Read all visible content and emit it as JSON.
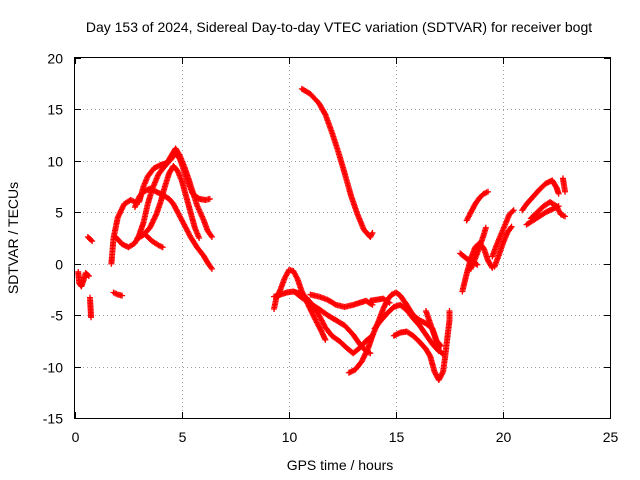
{
  "chart_data": {
    "type": "scatter",
    "title": "Day 153 of 2024, Sidereal Day-to-day VTEC variation (SDTVAR) for receiver bogt",
    "xlabel": "GPS time / hours",
    "ylabel": "SDTVAR / TECUs",
    "xlim": [
      0,
      25
    ],
    "ylim": [
      -15,
      20
    ],
    "xticks": [
      0,
      5,
      10,
      15,
      20,
      25
    ],
    "yticks": [
      -15,
      -10,
      -5,
      0,
      5,
      10,
      15,
      20
    ],
    "grid": true,
    "marker": "+",
    "color": "#ff0000",
    "series": [
      {
        "name": "arc-1",
        "points": [
          [
            0.15,
            -0.8
          ],
          [
            0.2,
            -1.9
          ],
          [
            0.3,
            -2.2
          ],
          [
            0.4,
            -1.6
          ],
          [
            0.5,
            -0.9
          ],
          [
            0.6,
            -1.1
          ],
          [
            0.65,
            -1.2
          ]
        ]
      },
      {
        "name": "arc-2",
        "points": [
          [
            0.6,
            2.6
          ],
          [
            0.7,
            2.4
          ],
          [
            0.8,
            2.2
          ]
        ]
      },
      {
        "name": "arc-3",
        "points": [
          [
            0.7,
            -3.3
          ],
          [
            0.75,
            -5.2
          ]
        ]
      },
      {
        "name": "arc-4",
        "points": [
          [
            1.8,
            -2.8
          ],
          [
            2.0,
            -3.0
          ],
          [
            2.2,
            -3.1
          ]
        ]
      },
      {
        "name": "arc-5",
        "points": [
          [
            1.7,
            0.0
          ],
          [
            1.8,
            2.5
          ],
          [
            2.0,
            4.5
          ],
          [
            2.3,
            5.8
          ],
          [
            2.6,
            6.2
          ],
          [
            2.8,
            6.0
          ]
        ]
      },
      {
        "name": "arc-6",
        "points": [
          [
            1.9,
            2.6
          ],
          [
            2.2,
            1.9
          ],
          [
            2.5,
            1.6
          ],
          [
            2.8,
            2.0
          ],
          [
            3.0,
            2.8
          ],
          [
            3.2,
            4.0
          ],
          [
            3.4,
            5.8
          ],
          [
            3.6,
            7.2
          ],
          [
            3.9,
            8.7
          ],
          [
            4.2,
            9.5
          ],
          [
            4.5,
            10.2
          ],
          [
            4.7,
            10.7
          ],
          [
            4.9,
            10.2
          ],
          [
            5.1,
            9.0
          ],
          [
            5.3,
            7.8
          ],
          [
            5.5,
            6.8
          ],
          [
            5.8,
            6.3
          ],
          [
            6.1,
            6.2
          ],
          [
            6.3,
            6.3
          ]
        ]
      },
      {
        "name": "arc-7",
        "points": [
          [
            2.8,
            5.5
          ],
          [
            3.0,
            6.5
          ],
          [
            3.2,
            7.0
          ],
          [
            3.5,
            7.3
          ],
          [
            3.8,
            7.0
          ],
          [
            4.1,
            6.7
          ],
          [
            4.4,
            6.3
          ],
          [
            4.6,
            5.8
          ],
          [
            4.8,
            5.0
          ],
          [
            5.1,
            3.8
          ],
          [
            5.4,
            2.6
          ],
          [
            5.7,
            1.6
          ],
          [
            6.0,
            0.8
          ],
          [
            6.2,
            0.1
          ],
          [
            6.4,
            -0.5
          ]
        ]
      },
      {
        "name": "arc-8",
        "points": [
          [
            3.0,
            6.0
          ],
          [
            3.2,
            7.5
          ],
          [
            3.4,
            8.5
          ],
          [
            3.7,
            9.3
          ],
          [
            4.0,
            9.6
          ],
          [
            4.3,
            9.8
          ],
          [
            4.5,
            10.5
          ],
          [
            4.7,
            11.2
          ],
          [
            4.9,
            10.5
          ],
          [
            5.1,
            9.5
          ],
          [
            5.3,
            8.3
          ],
          [
            5.5,
            7.0
          ],
          [
            5.7,
            5.7
          ],
          [
            6.0,
            4.3
          ],
          [
            6.2,
            3.2
          ],
          [
            6.4,
            2.6
          ]
        ]
      },
      {
        "name": "arc-9",
        "points": [
          [
            2.9,
            2.4
          ],
          [
            3.2,
            2.8
          ],
          [
            3.5,
            3.5
          ],
          [
            3.8,
            4.8
          ],
          [
            4.0,
            6.0
          ],
          [
            4.2,
            7.5
          ],
          [
            4.4,
            8.8
          ],
          [
            4.6,
            9.5
          ],
          [
            4.8,
            9.0
          ],
          [
            5.0,
            8.0
          ],
          [
            5.2,
            6.5
          ],
          [
            5.4,
            5.0
          ],
          [
            5.6,
            3.5
          ],
          [
            5.8,
            2.5
          ]
        ]
      },
      {
        "name": "arc-10",
        "points": [
          [
            3.3,
            2.8
          ],
          [
            3.6,
            2.2
          ],
          [
            3.9,
            1.8
          ],
          [
            4.1,
            1.6
          ]
        ]
      },
      {
        "name": "arc-11",
        "points": [
          [
            10.6,
            17.0
          ],
          [
            11.0,
            16.5
          ],
          [
            11.4,
            15.6
          ],
          [
            11.7,
            14.5
          ],
          [
            12.0,
            12.8
          ],
          [
            12.3,
            10.9
          ],
          [
            12.6,
            8.8
          ],
          [
            12.9,
            6.6
          ],
          [
            13.2,
            4.8
          ],
          [
            13.5,
            3.3
          ],
          [
            13.8,
            2.6
          ],
          [
            13.9,
            3.0
          ]
        ]
      },
      {
        "name": "arc-12",
        "points": [
          [
            9.3,
            -4.4
          ],
          [
            9.4,
            -3.4
          ],
          [
            9.6,
            -2.5
          ],
          [
            9.8,
            -1.4
          ],
          [
            10.0,
            -0.6
          ],
          [
            10.2,
            -0.7
          ],
          [
            10.4,
            -1.5
          ],
          [
            10.6,
            -2.7
          ],
          [
            10.9,
            -4.0
          ],
          [
            11.2,
            -5.3
          ],
          [
            11.5,
            -6.5
          ],
          [
            11.7,
            -7.4
          ]
        ]
      },
      {
        "name": "arc-13",
        "points": [
          [
            9.3,
            -3.2
          ],
          [
            9.6,
            -3.0
          ],
          [
            9.9,
            -2.8
          ],
          [
            10.2,
            -2.7
          ],
          [
            10.5,
            -2.9
          ],
          [
            10.8,
            -3.3
          ],
          [
            11.1,
            -4.0
          ],
          [
            11.4,
            -5.0
          ],
          [
            11.7,
            -6.2
          ],
          [
            12.0,
            -7.0
          ],
          [
            12.4,
            -7.6
          ],
          [
            12.7,
            -8.2
          ],
          [
            13.0,
            -8.7
          ],
          [
            13.3,
            -8.2
          ],
          [
            13.6,
            -7.5
          ],
          [
            13.9,
            -7.0
          ]
        ]
      },
      {
        "name": "arc-14",
        "points": [
          [
            10.3,
            -2.8
          ],
          [
            10.6,
            -3.3
          ],
          [
            11.0,
            -3.9
          ],
          [
            11.4,
            -4.4
          ],
          [
            11.8,
            -5.0
          ],
          [
            12.2,
            -5.5
          ],
          [
            12.6,
            -6.0
          ],
          [
            13.0,
            -6.9
          ],
          [
            13.3,
            -7.8
          ],
          [
            13.6,
            -8.5
          ],
          [
            13.8,
            -8.7
          ]
        ]
      },
      {
        "name": "arc-15",
        "points": [
          [
            11.0,
            -3.0
          ],
          [
            11.4,
            -3.2
          ],
          [
            11.8,
            -3.5
          ],
          [
            12.2,
            -4.0
          ],
          [
            12.6,
            -4.2
          ],
          [
            13.0,
            -4.0
          ],
          [
            13.3,
            -3.8
          ],
          [
            13.6,
            -3.6
          ],
          [
            13.9,
            -4.0
          ]
        ]
      },
      {
        "name": "arc-16",
        "points": [
          [
            12.8,
            -10.6
          ],
          [
            13.1,
            -10.3
          ],
          [
            13.4,
            -9.5
          ],
          [
            13.7,
            -8.2
          ],
          [
            13.9,
            -7.0
          ],
          [
            14.2,
            -5.5
          ],
          [
            14.4,
            -4.4
          ],
          [
            14.6,
            -3.5
          ],
          [
            14.8,
            -3.0
          ],
          [
            15.0,
            -2.8
          ],
          [
            15.2,
            -3.1
          ],
          [
            15.5,
            -4.0
          ],
          [
            15.8,
            -5.0
          ],
          [
            16.1,
            -5.5
          ],
          [
            16.4,
            -5.8
          ],
          [
            16.7,
            -6.3
          ],
          [
            16.9,
            -7.5
          ],
          [
            17.1,
            -8.0
          ]
        ]
      },
      {
        "name": "arc-17",
        "points": [
          [
            14.0,
            -6.3
          ],
          [
            14.3,
            -5.5
          ],
          [
            14.6,
            -4.8
          ],
          [
            14.9,
            -4.2
          ],
          [
            15.2,
            -4.0
          ],
          [
            15.5,
            -4.5
          ],
          [
            15.8,
            -5.3
          ],
          [
            16.1,
            -6.0
          ],
          [
            16.4,
            -6.9
          ],
          [
            16.7,
            -7.8
          ],
          [
            17.0,
            -8.5
          ]
        ]
      },
      {
        "name": "arc-18",
        "points": [
          [
            13.8,
            -3.6
          ],
          [
            14.1,
            -3.5
          ],
          [
            14.4,
            -3.4
          ],
          [
            14.7,
            -3.8
          ]
        ]
      },
      {
        "name": "arc-19",
        "points": [
          [
            14.9,
            -7.0
          ],
          [
            15.2,
            -6.7
          ],
          [
            15.5,
            -6.6
          ],
          [
            15.8,
            -7.0
          ],
          [
            16.1,
            -7.6
          ],
          [
            16.4,
            -8.3
          ],
          [
            16.6,
            -9.0
          ],
          [
            16.8,
            -10.5
          ],
          [
            17.0,
            -11.3
          ],
          [
            17.2,
            -10.5
          ],
          [
            17.3,
            -9.0
          ],
          [
            17.4,
            -7.2
          ],
          [
            17.5,
            -5.5
          ],
          [
            17.5,
            -4.6
          ]
        ]
      },
      {
        "name": "arc-20",
        "points": [
          [
            16.4,
            -4.6
          ],
          [
            16.6,
            -5.8
          ],
          [
            16.8,
            -7.0
          ],
          [
            17.0,
            -8.4
          ],
          [
            17.2,
            -8.8
          ]
        ]
      },
      {
        "name": "arc-21",
        "points": [
          [
            18.1,
            -2.7
          ],
          [
            18.3,
            -1.0
          ],
          [
            18.5,
            0.5
          ],
          [
            18.7,
            1.6
          ],
          [
            18.9,
            2.0
          ],
          [
            19.1,
            1.5
          ],
          [
            19.3,
            0.3
          ],
          [
            19.5,
            -0.4
          ]
        ]
      },
      {
        "name": "arc-22",
        "points": [
          [
            18.3,
            4.2
          ],
          [
            18.5,
            5.0
          ],
          [
            18.7,
            5.8
          ],
          [
            18.9,
            6.4
          ],
          [
            19.1,
            6.8
          ],
          [
            19.3,
            7.0
          ]
        ]
      },
      {
        "name": "arc-23",
        "points": [
          [
            18.5,
            -0.5
          ],
          [
            18.7,
            0.5
          ],
          [
            18.9,
            1.6
          ],
          [
            19.1,
            2.8
          ],
          [
            19.2,
            3.5
          ]
        ]
      },
      {
        "name": "arc-24",
        "points": [
          [
            18.0,
            1.0
          ],
          [
            18.3,
            0.5
          ],
          [
            18.6,
            0.2
          ],
          [
            18.8,
            -0.1
          ]
        ]
      },
      {
        "name": "arc-25",
        "points": [
          [
            19.5,
            0.7
          ],
          [
            19.7,
            1.8
          ],
          [
            19.9,
            2.8
          ],
          [
            20.1,
            3.8
          ],
          [
            20.3,
            4.8
          ],
          [
            20.5,
            5.2
          ]
        ]
      },
      {
        "name": "arc-26",
        "points": [
          [
            19.6,
            -0.3
          ],
          [
            19.8,
            0.8
          ],
          [
            20.0,
            2.0
          ],
          [
            20.2,
            3.0
          ],
          [
            20.4,
            3.6
          ]
        ]
      },
      {
        "name": "arc-27",
        "points": [
          [
            20.9,
            5.2
          ],
          [
            21.1,
            5.8
          ],
          [
            21.4,
            6.5
          ],
          [
            21.7,
            7.2
          ],
          [
            22.0,
            7.8
          ],
          [
            22.3,
            8.1
          ],
          [
            22.5,
            7.4
          ],
          [
            22.6,
            6.8
          ]
        ]
      },
      {
        "name": "arc-28",
        "points": [
          [
            21.1,
            3.8
          ],
          [
            21.4,
            4.2
          ],
          [
            21.7,
            4.6
          ],
          [
            22.0,
            5.0
          ],
          [
            22.3,
            5.3
          ],
          [
            22.6,
            5.6
          ]
        ]
      },
      {
        "name": "arc-29",
        "points": [
          [
            21.3,
            4.4
          ],
          [
            21.6,
            5.0
          ],
          [
            21.9,
            5.6
          ],
          [
            22.2,
            6.0
          ],
          [
            22.5,
            5.6
          ],
          [
            22.7,
            4.8
          ],
          [
            22.9,
            4.6
          ]
        ]
      },
      {
        "name": "arc-30",
        "points": [
          [
            22.8,
            8.3
          ],
          [
            22.9,
            7.0
          ]
        ]
      }
    ]
  }
}
